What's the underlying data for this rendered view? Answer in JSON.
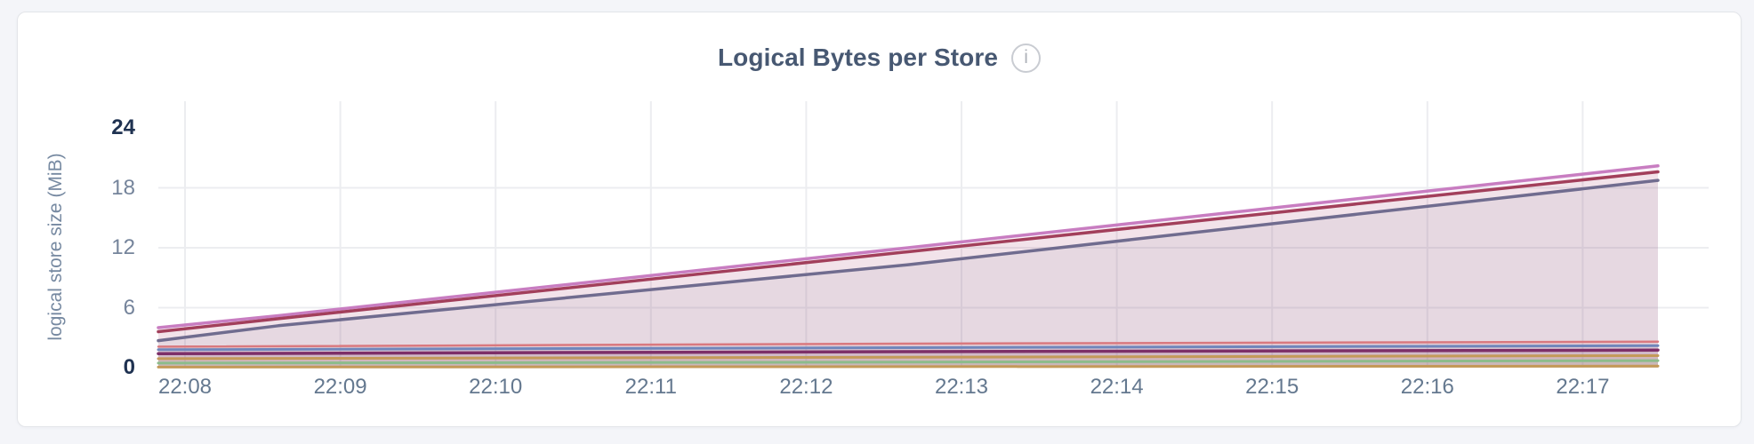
{
  "page": {
    "background": "#F4F5F9",
    "card_background": "#FFFFFF",
    "card_border": "#E3E5E9"
  },
  "header": {
    "title": "Logical Bytes per Store",
    "title_color": "#475872",
    "info_icon": "info-circle-icon",
    "info_glyph": "i"
  },
  "axis": {
    "y_label_color": "#7689A1",
    "y_tick_color": "#75849B",
    "y_tick_bold_color": "#1F3251",
    "x_tick_color": "#64788F",
    "grid_color": "#ECEDF0"
  },
  "chart_data": {
    "type": "area",
    "title": "Logical Bytes per Store",
    "xlabel": "",
    "ylabel": "logical store size (MiB)",
    "x_ticks": [
      "22:08",
      "22:09",
      "22:10",
      "22:11",
      "22:12",
      "22:13",
      "22:14",
      "22:15",
      "22:16",
      "22:17"
    ],
    "y_ticks": [
      0,
      6,
      12,
      18,
      24
    ],
    "y_ticks_bold": [
      0,
      24
    ],
    "ylim": [
      0,
      26.7
    ],
    "grid": {
      "h_lines": [
        6,
        12,
        18
      ],
      "v_lines_at_every_x_tick": true,
      "legend": "none"
    },
    "fill_opacity": 0.09,
    "series": [
      {
        "id": "s1",
        "color": "#C87DC1",
        "width": 3.5,
        "points": [
          [
            0,
            4.0
          ],
          [
            0.08,
            5.2
          ],
          [
            0.5,
            12.0
          ],
          [
            1,
            20.2
          ]
        ]
      },
      {
        "id": "s2",
        "color": "#A23F5B",
        "width": 3.5,
        "points": [
          [
            0,
            3.6
          ],
          [
            0.08,
            4.9
          ],
          [
            0.5,
            11.6
          ],
          [
            1,
            19.6
          ]
        ]
      },
      {
        "id": "s3",
        "color": "#706C8F",
        "width": 3.5,
        "points": [
          [
            0,
            2.7
          ],
          [
            0.08,
            4.2
          ],
          [
            0.5,
            10.3
          ],
          [
            1,
            18.75
          ]
        ]
      },
      {
        "id": "s4",
        "color": "#D9797F",
        "width": 2.5,
        "points": [
          [
            0,
            2.1
          ],
          [
            0.5,
            2.4
          ],
          [
            1,
            2.6
          ]
        ]
      },
      {
        "id": "s5",
        "color": "#7086BB",
        "width": 3,
        "points": [
          [
            0,
            1.8
          ],
          [
            0.5,
            2.0
          ],
          [
            1,
            2.2
          ]
        ]
      },
      {
        "id": "s6",
        "color": "#7D2F68",
        "width": 3.5,
        "points": [
          [
            0,
            1.4
          ],
          [
            0.5,
            1.6
          ],
          [
            1,
            1.75
          ]
        ]
      },
      {
        "id": "s7",
        "color": "#C49A59",
        "width": 3,
        "points": [
          [
            0,
            0.9
          ],
          [
            0.5,
            1.05
          ],
          [
            1,
            1.2
          ]
        ]
      },
      {
        "id": "s8",
        "color": "#8CBC8B",
        "width": 3,
        "points": [
          [
            0,
            0.45
          ],
          [
            0.5,
            0.55
          ],
          [
            1,
            0.7
          ]
        ]
      },
      {
        "id": "s9",
        "color": "#C49A59",
        "width": 3,
        "points": [
          [
            0,
            0.05
          ],
          [
            0.5,
            0.1
          ],
          [
            1,
            0.15
          ]
        ]
      }
    ]
  }
}
